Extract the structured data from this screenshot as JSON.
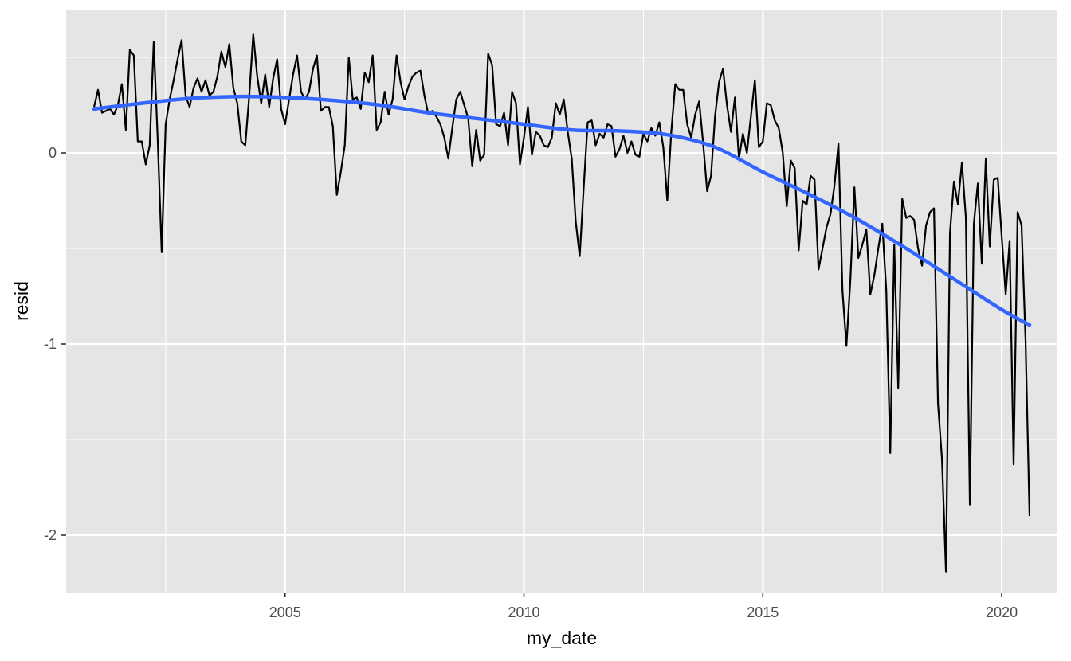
{
  "chart_data": {
    "type": "line",
    "title": "",
    "xlabel": "my_date",
    "ylabel": "resid",
    "x_axis": {
      "type": "date",
      "range": [
        "2000-06-01",
        "2021-03-01"
      ],
      "major_ticks": [
        {
          "date": "2005-01-01",
          "label": "2005"
        },
        {
          "date": "2010-01-01",
          "label": "2010"
        },
        {
          "date": "2015-01-01",
          "label": "2015"
        },
        {
          "date": "2020-01-01",
          "label": "2020"
        }
      ],
      "minor_ticks": [
        "2002-07-01",
        "2007-07-01",
        "2012-07-01",
        "2017-07-01"
      ]
    },
    "y_axis": {
      "range": [
        -2.3,
        0.75
      ],
      "major_ticks": [
        {
          "value": 0,
          "label": "0"
        },
        {
          "value": -1,
          "label": "-1"
        },
        {
          "value": -2,
          "label": "-2"
        }
      ],
      "minor_ticks": [
        0.5,
        -0.5,
        -1.5
      ]
    },
    "grid": true,
    "colors": {
      "panel": "#E5E5E5",
      "grid": "#FFFFFF",
      "series": "#000000",
      "smooth": "#3366FF"
    },
    "series": [
      {
        "x": [
          "2001-01",
          "2001-02",
          "2001-03",
          "2001-04",
          "2001-05",
          "2001-06",
          "2001-07",
          "2001-08",
          "2001-09",
          "2001-10",
          "2001-11",
          "2001-12",
          "2002-01",
          "2002-02",
          "2002-03",
          "2002-04",
          "2002-05",
          "2002-06",
          "2002-07",
          "2002-08",
          "2002-09",
          "2002-10",
          "2002-11",
          "2002-12",
          "2003-01",
          "2003-02",
          "2003-03",
          "2003-04",
          "2003-05",
          "2003-06",
          "2003-07",
          "2003-08",
          "2003-09",
          "2003-10",
          "2003-11",
          "2003-12",
          "2004-01",
          "2004-02",
          "2004-03",
          "2004-04",
          "2004-05",
          "2004-06",
          "2004-07",
          "2004-08",
          "2004-09",
          "2004-10",
          "2004-11",
          "2004-12",
          "2005-01",
          "2005-02",
          "2005-03",
          "2005-04",
          "2005-05",
          "2005-06",
          "2005-07",
          "2005-08",
          "2005-09",
          "2005-10",
          "2005-11",
          "2005-12",
          "2006-01",
          "2006-02",
          "2006-03",
          "2006-04",
          "2006-05",
          "2006-06",
          "2006-07",
          "2006-08",
          "2006-09",
          "2006-10",
          "2006-11",
          "2006-12",
          "2007-01",
          "2007-02",
          "2007-03",
          "2007-04",
          "2007-05",
          "2007-06",
          "2007-07",
          "2007-08",
          "2007-09",
          "2007-10",
          "2007-11",
          "2007-12",
          "2008-01",
          "2008-02",
          "2008-03",
          "2008-04",
          "2008-05",
          "2008-06",
          "2008-07",
          "2008-08",
          "2008-09",
          "2008-10",
          "2008-11",
          "2008-12",
          "2009-01",
          "2009-02",
          "2009-03",
          "2009-04",
          "2009-05",
          "2009-06",
          "2009-07",
          "2009-08",
          "2009-09",
          "2009-10",
          "2009-11",
          "2009-12",
          "2010-01",
          "2010-02",
          "2010-03",
          "2010-04",
          "2010-05",
          "2010-06",
          "2010-07",
          "2010-08",
          "2010-09",
          "2010-10",
          "2010-11",
          "2010-12",
          "2011-01",
          "2011-02",
          "2011-03",
          "2011-04",
          "2011-05",
          "2011-06",
          "2011-07",
          "2011-08",
          "2011-09",
          "2011-10",
          "2011-11",
          "2011-12",
          "2012-01",
          "2012-02",
          "2012-03",
          "2012-04",
          "2012-05",
          "2012-06",
          "2012-07",
          "2012-08",
          "2012-09",
          "2012-10",
          "2012-11",
          "2012-12",
          "2013-01",
          "2013-02",
          "2013-03",
          "2013-04",
          "2013-05",
          "2013-06",
          "2013-07",
          "2013-08",
          "2013-09",
          "2013-10",
          "2013-11",
          "2013-12",
          "2014-01",
          "2014-02",
          "2014-03",
          "2014-04",
          "2014-05",
          "2014-06",
          "2014-07",
          "2014-08",
          "2014-09",
          "2014-10",
          "2014-11",
          "2014-12",
          "2015-01",
          "2015-02",
          "2015-03",
          "2015-04",
          "2015-05",
          "2015-06",
          "2015-07",
          "2015-08",
          "2015-09",
          "2015-10",
          "2015-11",
          "2015-12",
          "2016-01",
          "2016-02",
          "2016-03",
          "2016-04",
          "2016-05",
          "2016-06",
          "2016-07",
          "2016-08",
          "2016-09",
          "2016-10",
          "2016-11",
          "2016-12",
          "2017-01",
          "2017-02",
          "2017-03",
          "2017-04",
          "2017-05",
          "2017-06",
          "2017-07",
          "2017-08",
          "2017-09",
          "2017-10",
          "2017-11",
          "2017-12",
          "2018-01",
          "2018-02",
          "2018-03",
          "2018-04",
          "2018-05",
          "2018-06",
          "2018-07",
          "2018-08",
          "2018-09",
          "2018-10",
          "2018-11",
          "2018-12",
          "2019-01",
          "2019-02",
          "2019-03",
          "2019-04",
          "2019-05",
          "2019-06",
          "2019-07",
          "2019-08",
          "2019-09",
          "2019-10",
          "2019-11",
          "2019-12",
          "2020-01",
          "2020-02",
          "2020-03",
          "2020-04",
          "2020-05",
          "2020-06",
          "2020-07",
          "2020-08"
        ],
        "y": [
          0.24,
          0.33,
          0.21,
          0.22,
          0.23,
          0.2,
          0.25,
          0.36,
          0.12,
          0.54,
          0.51,
          0.06,
          0.06,
          -0.06,
          0.04,
          0.58,
          0.07,
          -0.52,
          0.15,
          0.28,
          0.38,
          0.49,
          0.59,
          0.3,
          0.24,
          0.34,
          0.39,
          0.32,
          0.38,
          0.3,
          0.32,
          0.4,
          0.53,
          0.45,
          0.57,
          0.34,
          0.26,
          0.06,
          0.04,
          0.3,
          0.62,
          0.4,
          0.26,
          0.41,
          0.24,
          0.39,
          0.49,
          0.23,
          0.15,
          0.28,
          0.41,
          0.51,
          0.32,
          0.28,
          0.32,
          0.44,
          0.51,
          0.22,
          0.24,
          0.24,
          0.14,
          -0.22,
          -0.1,
          0.04,
          0.5,
          0.28,
          0.29,
          0.23,
          0.42,
          0.37,
          0.51,
          0.12,
          0.16,
          0.32,
          0.2,
          0.28,
          0.51,
          0.37,
          0.28,
          0.35,
          0.4,
          0.42,
          0.43,
          0.3,
          0.2,
          0.22,
          0.19,
          0.15,
          0.08,
          -0.03,
          0.13,
          0.28,
          0.32,
          0.25,
          0.18,
          -0.07,
          0.12,
          -0.04,
          -0.01,
          0.52,
          0.46,
          0.15,
          0.14,
          0.21,
          0.04,
          0.32,
          0.26,
          -0.06,
          0.08,
          0.24,
          -0.01,
          0.11,
          0.09,
          0.04,
          0.03,
          0.08,
          0.26,
          0.2,
          0.28,
          0.11,
          -0.03,
          -0.36,
          -0.54,
          -0.18,
          0.16,
          0.17,
          0.04,
          0.1,
          0.08,
          0.15,
          0.14,
          -0.02,
          0.02,
          0.09,
          0.0,
          0.06,
          -0.01,
          -0.02,
          0.1,
          0.06,
          0.13,
          0.09,
          0.16,
          0.03,
          -0.25,
          0.11,
          0.36,
          0.33,
          0.33,
          0.15,
          0.08,
          0.2,
          0.27,
          0.05,
          -0.2,
          -0.12,
          0.19,
          0.37,
          0.44,
          0.25,
          0.11,
          0.29,
          -0.03,
          0.1,
          0.0,
          0.19,
          0.38,
          0.03,
          0.06,
          0.26,
          0.25,
          0.17,
          0.13,
          0.0,
          -0.28,
          -0.04,
          -0.08,
          -0.51,
          -0.25,
          -0.27,
          -0.12,
          -0.14,
          -0.61,
          -0.5,
          -0.39,
          -0.32,
          -0.17,
          0.05,
          -0.72,
          -1.01,
          -0.66,
          -0.18,
          -0.55,
          -0.48,
          -0.4,
          -0.74,
          -0.64,
          -0.5,
          -0.37,
          -0.72,
          -1.57,
          -0.48,
          -1.23,
          -0.24,
          -0.34,
          -0.33,
          -0.35,
          -0.5,
          -0.59,
          -0.38,
          -0.31,
          -0.29,
          -1.31,
          -1.6,
          -2.19,
          -0.42,
          -0.15,
          -0.27,
          -0.05,
          -0.34,
          -1.84,
          -0.37,
          -0.16,
          -0.58,
          -0.03,
          -0.49,
          -0.14,
          -0.13,
          -0.44,
          -0.74,
          -0.46,
          -1.63,
          -0.31,
          -0.38,
          -0.98,
          -1.9
        ]
      },
      {
        "kind": "smooth",
        "x": [
          "2001-01",
          "2002-01",
          "2003-01",
          "2004-01",
          "2005-01",
          "2006-01",
          "2007-01",
          "2008-01",
          "2009-01",
          "2010-01",
          "2011-01",
          "2012-01",
          "2013-01",
          "2014-01",
          "2015-01",
          "2016-01",
          "2017-01",
          "2018-01",
          "2019-01",
          "2020-01",
          "2020-08"
        ],
        "y": [
          0.23,
          0.26,
          0.285,
          0.295,
          0.29,
          0.275,
          0.25,
          0.21,
          0.18,
          0.15,
          0.12,
          0.115,
          0.095,
          0.03,
          -0.1,
          -0.22,
          -0.35,
          -0.5,
          -0.66,
          -0.82,
          -0.9
        ]
      }
    ]
  }
}
